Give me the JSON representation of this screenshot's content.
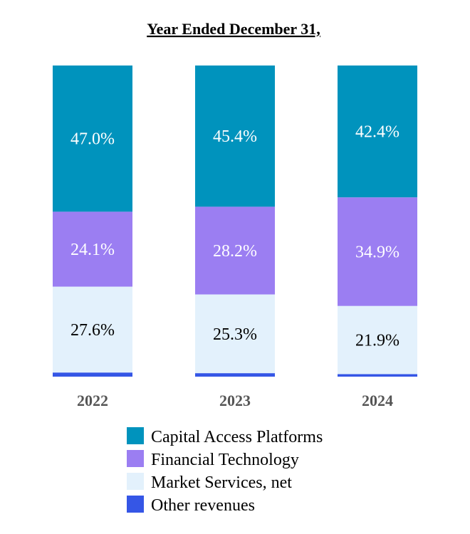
{
  "chart_data": {
    "type": "bar",
    "stacked": true,
    "title": "Year Ended December 31,",
    "categories": [
      "2022",
      "2023",
      "2024"
    ],
    "series": [
      {
        "name": "Capital Access Platforms",
        "values": [
          47.0,
          45.4,
          42.4
        ],
        "labels": [
          "47.0%",
          "45.4%",
          "42.4%"
        ],
        "color": "#0093BD",
        "label_color": "#ffffff"
      },
      {
        "name": "Financial Technology",
        "values": [
          24.1,
          28.2,
          34.9
        ],
        "labels": [
          "24.1%",
          "28.2%",
          "34.9%"
        ],
        "color": "#9B7EF2",
        "label_color": "#ffffff"
      },
      {
        "name": "Market Services, net",
        "values": [
          27.6,
          25.3,
          21.9
        ],
        "labels": [
          "27.6%",
          "25.3%",
          "21.9%"
        ],
        "color": "#E3F1FC",
        "label_color": "#000000"
      },
      {
        "name": "Other revenues",
        "values": [
          1.3,
          1.1,
          0.8
        ],
        "labels": [
          "",
          "",
          ""
        ],
        "color": "#3556E6",
        "label_color": "#000000"
      }
    ],
    "ylim": [
      0,
      100
    ],
    "grid": false,
    "legend_position": "bottom"
  }
}
